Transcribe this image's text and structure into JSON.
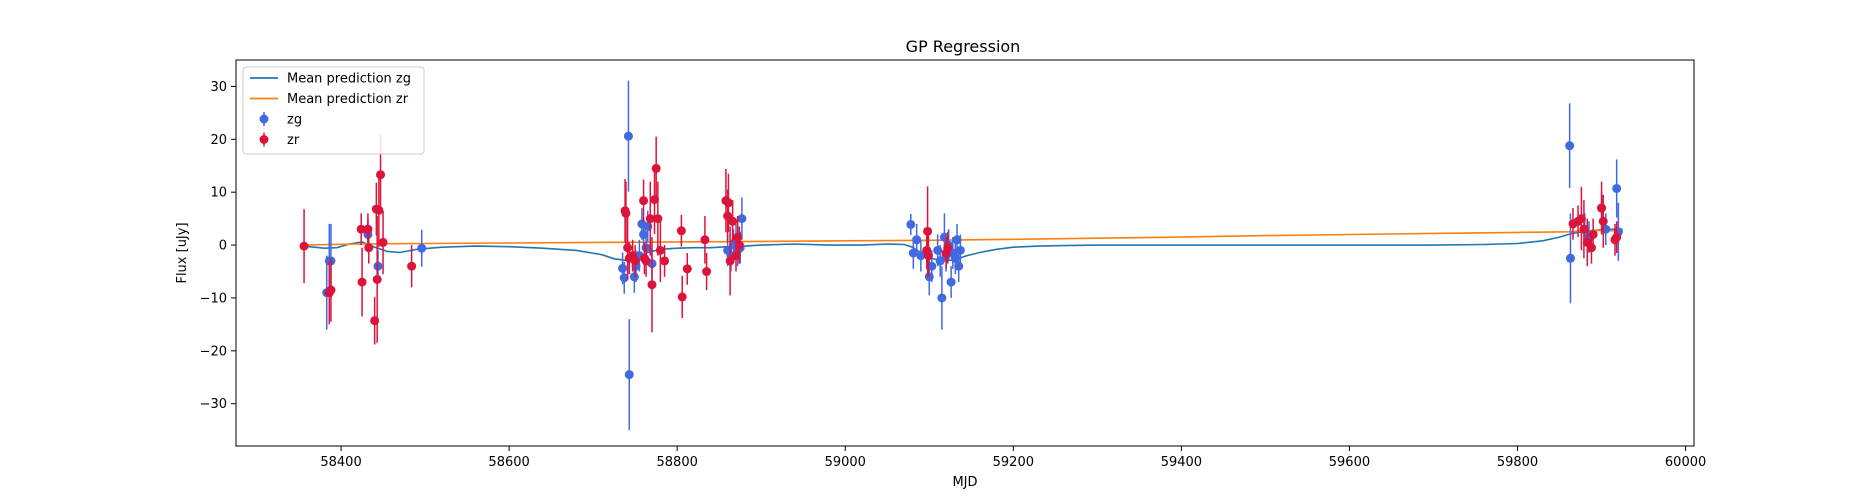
{
  "chart_data": {
    "type": "scatter",
    "title": "GP Regression",
    "xlabel": "MJD",
    "ylabel": "Flux [uJy]",
    "xlim": [
      58275,
      60010
    ],
    "ylim": [
      -38,
      35
    ],
    "xticks": [
      58400,
      58600,
      58800,
      59000,
      59200,
      59400,
      59600,
      59800,
      60000
    ],
    "yticks": [
      -30,
      -20,
      -10,
      0,
      10,
      20,
      30
    ],
    "grid": false,
    "legend": {
      "placement": "top-left",
      "entries": [
        {
          "label": "Mean prediction zg",
          "kind": "line",
          "color": "#1f77b4"
        },
        {
          "label": "Mean prediction zr",
          "kind": "line",
          "color": "#ff7f0e"
        },
        {
          "label": "zg",
          "kind": "errorbar",
          "color": "#4169e1"
        },
        {
          "label": "zr",
          "kind": "errorbar",
          "color": "#dc143c"
        }
      ]
    },
    "lines": [
      {
        "name": "Mean prediction zg",
        "color": "#1f77b4",
        "x": [
          58355,
          58380,
          58395,
          58410,
          58425,
          58440,
          58455,
          58470,
          58490,
          58520,
          58560,
          58600,
          58640,
          58680,
          58710,
          58725,
          58740,
          58755,
          58765,
          58780,
          58800,
          58820,
          58840,
          58860,
          58880,
          58900,
          58940,
          58980,
          59020,
          59050,
          59070,
          59080,
          59090,
          59100,
          59115,
          59130,
          59145,
          59160,
          59180,
          59200,
          59230,
          59260,
          59300,
          59400,
          59500,
          59600,
          59700,
          59760,
          59800,
          59830,
          59850,
          59865,
          59880,
          59900,
          59915,
          59925
        ],
        "y": [
          -0.2,
          -0.6,
          -0.5,
          0.2,
          0.6,
          -0.4,
          -1.2,
          -1.4,
          -0.8,
          -0.4,
          -0.2,
          -0.3,
          -0.6,
          -1.0,
          -1.8,
          -2.6,
          -2.9,
          -2.2,
          -1.4,
          -0.8,
          -0.6,
          -0.5,
          -0.5,
          -0.3,
          -0.2,
          0.0,
          0.2,
          0.0,
          0.0,
          0.2,
          0.1,
          -0.4,
          -1.4,
          -2.4,
          -3.0,
          -2.8,
          -2.0,
          -1.4,
          -0.8,
          -0.4,
          -0.2,
          -0.1,
          0.0,
          0.0,
          0.0,
          0.0,
          0.0,
          0.1,
          0.3,
          0.8,
          1.5,
          2.2,
          2.6,
          2.9,
          3.0,
          3.0
        ]
      },
      {
        "name": "Mean prediction zr",
        "color": "#ff7f0e",
        "x": [
          58355,
          58420,
          58500,
          58600,
          58700,
          58800,
          58900,
          59000,
          59100,
          59200,
          59300,
          59400,
          59500,
          59600,
          59700,
          59800,
          59860,
          59880,
          59900,
          59925
        ],
        "y": [
          0.0,
          0.2,
          0.3,
          0.4,
          0.5,
          0.6,
          0.7,
          0.8,
          0.9,
          1.1,
          1.3,
          1.5,
          1.8,
          2.0,
          2.2,
          2.4,
          2.5,
          2.7,
          2.8,
          2.7
        ]
      }
    ],
    "series": [
      {
        "name": "zg",
        "color": "#4169e1",
        "x": [
          58383,
          58386,
          58388,
          58432,
          58444,
          58496,
          58735,
          58737,
          58742,
          58743,
          58749,
          58751,
          58755,
          58758,
          58760,
          58763,
          58765,
          58770,
          58860,
          58864,
          58867,
          58870,
          58872,
          58875,
          58877,
          59078,
          59081,
          59085,
          59090,
          59100,
          59103,
          59110,
          59113,
          59115,
          59118,
          59120,
          59123,
          59126,
          59128,
          59131,
          59133,
          59135,
          59137,
          59862,
          59863,
          59880,
          59885,
          59900,
          59905,
          59918,
          59920
        ],
        "y": [
          -9.0,
          -3.0,
          -3.0,
          2.0,
          -4.0,
          -0.6,
          -4.4,
          -6.2,
          20.6,
          -24.5,
          -6.0,
          -4.0,
          -2.0,
          4.0,
          2.0,
          -0.5,
          3.5,
          -3.5,
          -1.0,
          -2.0,
          0.0,
          1.0,
          -1.0,
          -0.5,
          5.0,
          3.9,
          -1.5,
          1.0,
          -2.0,
          -6.0,
          -4.0,
          -1.0,
          -3.0,
          -10.0,
          1.5,
          -2.0,
          0.0,
          -7.0,
          -1.5,
          -2.5,
          1.0,
          -4.0,
          -1.0,
          18.8,
          -2.5,
          3.0,
          1.5,
          7.0,
          3.0,
          10.7,
          2.5
        ],
        "err": [
          7.0,
          7.0,
          7.0,
          3.0,
          3.0,
          3.5,
          3.0,
          3.0,
          10.5,
          10.5,
          3.0,
          3.0,
          3.0,
          3.0,
          3.0,
          3.0,
          3.0,
          3.0,
          3.0,
          3.0,
          3.0,
          3.0,
          3.0,
          3.0,
          4.0,
          2.0,
          3.0,
          3.0,
          3.0,
          3.5,
          3.0,
          3.0,
          3.0,
          6.0,
          4.5,
          3.0,
          3.0,
          3.0,
          3.0,
          3.0,
          3.0,
          3.0,
          3.0,
          8.0,
          8.5,
          3.0,
          3.0,
          3.0,
          3.0,
          5.5,
          5.5
        ]
      },
      {
        "name": "zr",
        "color": "#dc143c",
        "x": [
          58356,
          58386,
          58388,
          58424,
          58425,
          58432,
          58433,
          58440,
          58442,
          58443,
          58445,
          58447,
          58450,
          58484,
          58738,
          58739,
          58741,
          58743,
          58747,
          58750,
          58760,
          58761,
          58763,
          58768,
          58770,
          58773,
          58775,
          58777,
          58780,
          58785,
          58805,
          58806,
          58812,
          58833,
          58835,
          58858,
          58860,
          58861,
          58863,
          58866,
          58870,
          58872,
          58874,
          59097,
          59098,
          59099,
          59120,
          59122,
          59866,
          59872,
          59876,
          59879,
          59883,
          59888,
          59890,
          59900,
          59902,
          59916,
          59918
        ],
        "y": [
          -0.2,
          -9.0,
          -8.5,
          3.0,
          -7.0,
          3.0,
          -0.5,
          -14.3,
          6.8,
          -6.5,
          6.6,
          13.3,
          0.5,
          -4.0,
          6.5,
          6.0,
          -0.5,
          -2.5,
          -2.0,
          -3.0,
          8.4,
          -2.5,
          -3.0,
          5.0,
          -7.5,
          8.6,
          14.5,
          5.0,
          -1.0,
          -3.0,
          2.7,
          -9.8,
          -4.5,
          1.0,
          -5.0,
          8.4,
          5.5,
          8.0,
          -3.0,
          4.5,
          -2.0,
          1.5,
          0.0,
          -1.0,
          2.6,
          -2.0,
          -1.5,
          -0.5,
          4.0,
          4.5,
          5.0,
          3.0,
          0.5,
          -0.5,
          2.0,
          7.0,
          4.5,
          1.0,
          1.5
        ],
        "err": [
          7.0,
          6.0,
          6.0,
          3.0,
          6.5,
          3.0,
          3.0,
          4.5,
          5.0,
          12.0,
          7.0,
          7.5,
          6.0,
          4.0,
          6.0,
          6.0,
          6.0,
          3.0,
          3.0,
          3.0,
          4.0,
          3.0,
          3.0,
          7.0,
          9.0,
          6.5,
          6.0,
          7.0,
          6.0,
          3.0,
          3.0,
          4.0,
          3.0,
          4.5,
          3.5,
          6.0,
          5.0,
          5.5,
          6.5,
          4.0,
          3.0,
          4.0,
          3.5,
          3.5,
          8.5,
          4.0,
          3.0,
          3.0,
          3.0,
          3.0,
          6.0,
          5.5,
          4.5,
          3.0,
          3.0,
          5.0,
          5.0,
          3.0,
          3.0
        ]
      }
    ]
  }
}
